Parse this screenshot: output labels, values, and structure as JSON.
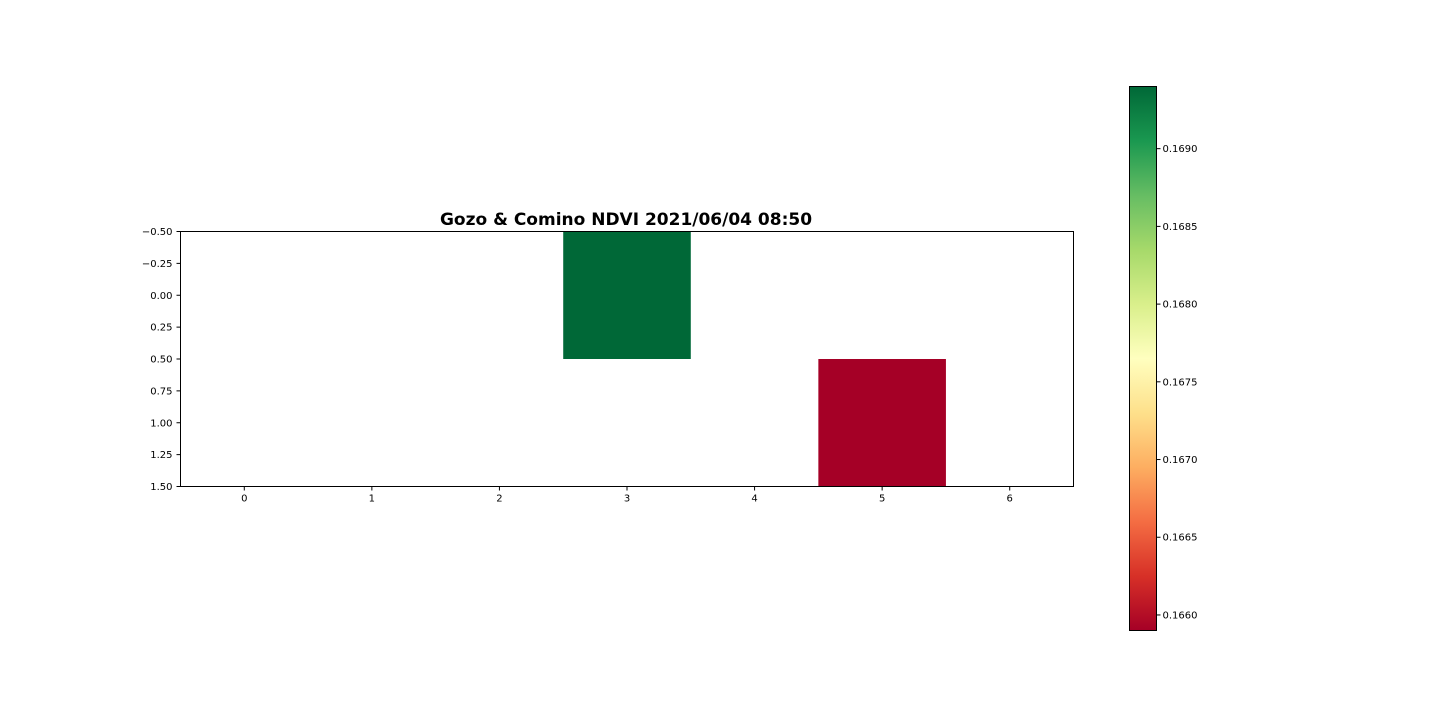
{
  "chart_data": {
    "type": "heatmap",
    "title": "Gozo & Comino NDVI 2021/06/04 08:50",
    "xlabel": "",
    "ylabel": "",
    "x_ticks": [
      "0",
      "1",
      "2",
      "3",
      "4",
      "5",
      "6"
    ],
    "y_ticks": [
      "−0.50",
      "−0.25",
      "0.00",
      "0.25",
      "0.50",
      "0.75",
      "1.00",
      "1.25",
      "1.50"
    ],
    "y_tick_values": [
      -0.5,
      -0.25,
      0.0,
      0.25,
      0.5,
      0.75,
      1.0,
      1.25,
      1.5
    ],
    "xlim": [
      -0.5,
      6.5
    ],
    "ylim": [
      1.5,
      -0.5
    ],
    "y_inverted": true,
    "grid": false,
    "rows": 2,
    "cols": 7,
    "values": [
      [
        null,
        null,
        null,
        0.1694,
        null,
        null,
        null
      ],
      [
        null,
        null,
        null,
        null,
        null,
        0.1659,
        null
      ]
    ],
    "colormap": "RdYlGn",
    "colormap_stops": [
      "#a50026",
      "#d73027",
      "#f46d43",
      "#fdae61",
      "#fee08b",
      "#ffffbf",
      "#d9ef8b",
      "#a6d96a",
      "#66bd63",
      "#1a9850",
      "#006837"
    ],
    "colorbar": {
      "min": 0.1659,
      "max": 0.1694,
      "ticks": [
        "0.1660",
        "0.1665",
        "0.1670",
        "0.1675",
        "0.1680",
        "0.1685",
        "0.1690"
      ],
      "tick_values": [
        0.166,
        0.1665,
        0.167,
        0.1675,
        0.168,
        0.1685,
        0.169
      ]
    }
  }
}
